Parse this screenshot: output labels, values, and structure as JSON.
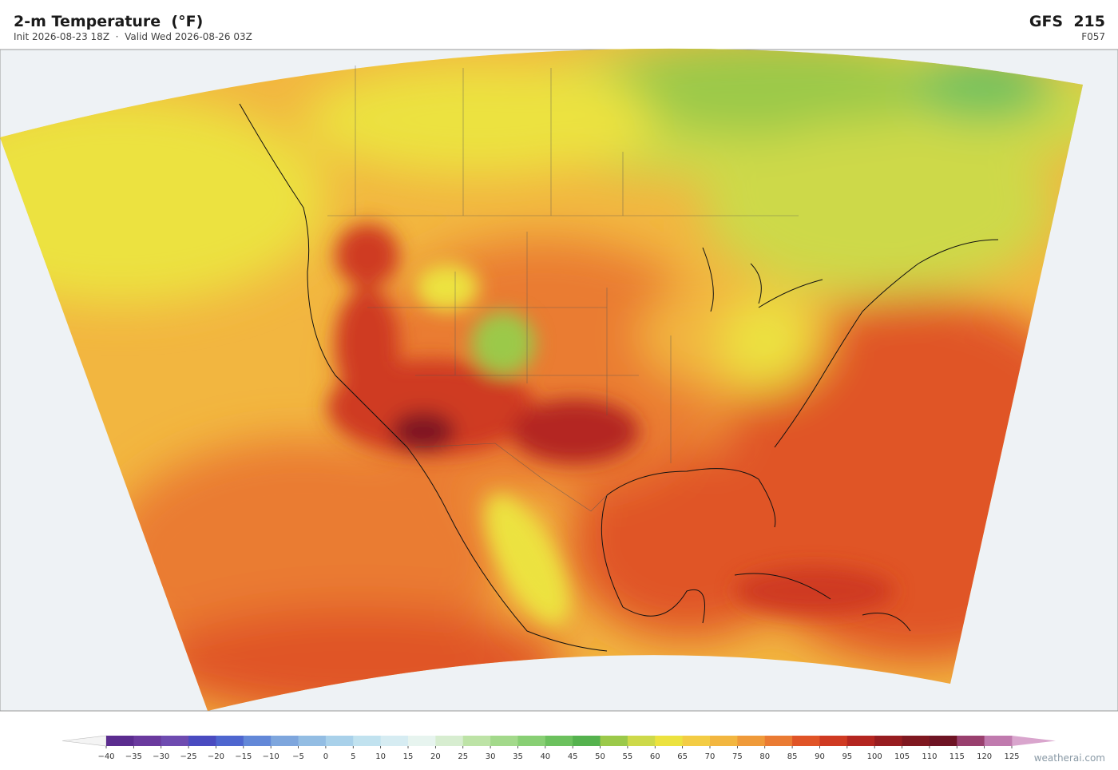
{
  "header": {
    "title": "2-m Temperature  (°F)",
    "subtitle": "Init 2026-08-23 18Z  ·  Valid Wed 2026-08-26 03Z",
    "model": "GFS  215",
    "forecast_hour": "F057"
  },
  "colorbar": {
    "ticks": [
      {
        "value": -40,
        "label": "−40"
      },
      {
        "value": -35,
        "label": "−35"
      },
      {
        "value": -30,
        "label": "−30"
      },
      {
        "value": -25,
        "label": "−25"
      },
      {
        "value": -20,
        "label": "−20"
      },
      {
        "value": -15,
        "label": "−15"
      },
      {
        "value": -10,
        "label": "−10"
      },
      {
        "value": -5,
        "label": "−5"
      },
      0,
      5,
      10,
      15,
      20,
      25,
      30,
      35,
      40,
      45,
      50,
      55,
      60,
      65,
      70,
      75,
      80,
      85,
      90,
      95,
      100,
      105,
      110,
      115,
      120,
      125
    ],
    "colors": [
      "#5b2c8f",
      "#6a3a9e",
      "#6e4bb0",
      "#4a4bc0",
      "#4e66cf",
      "#6388d8",
      "#7ea6dd",
      "#93bde3",
      "#a9d1ea",
      "#c1e2ef",
      "#d6ecf2",
      "#e7f4ef",
      "#d7edd0",
      "#bde3a6",
      "#a3d98b",
      "#88cf74",
      "#6cc15e",
      "#55b24e",
      "#9bc94a",
      "#cdd94a",
      "#ece23f",
      "#f3cc44",
      "#f2b640",
      "#ef9a3a",
      "#ea7b33",
      "#e05427",
      "#cf3a22",
      "#b42620",
      "#971d20",
      "#7f1820",
      "#6e1424",
      "#99406e",
      "#c07aae"
    ],
    "under_color": "#f4f4f4",
    "over_color": "#d9a5cd"
  },
  "footer": {
    "credit": "weatherai.com"
  }
}
